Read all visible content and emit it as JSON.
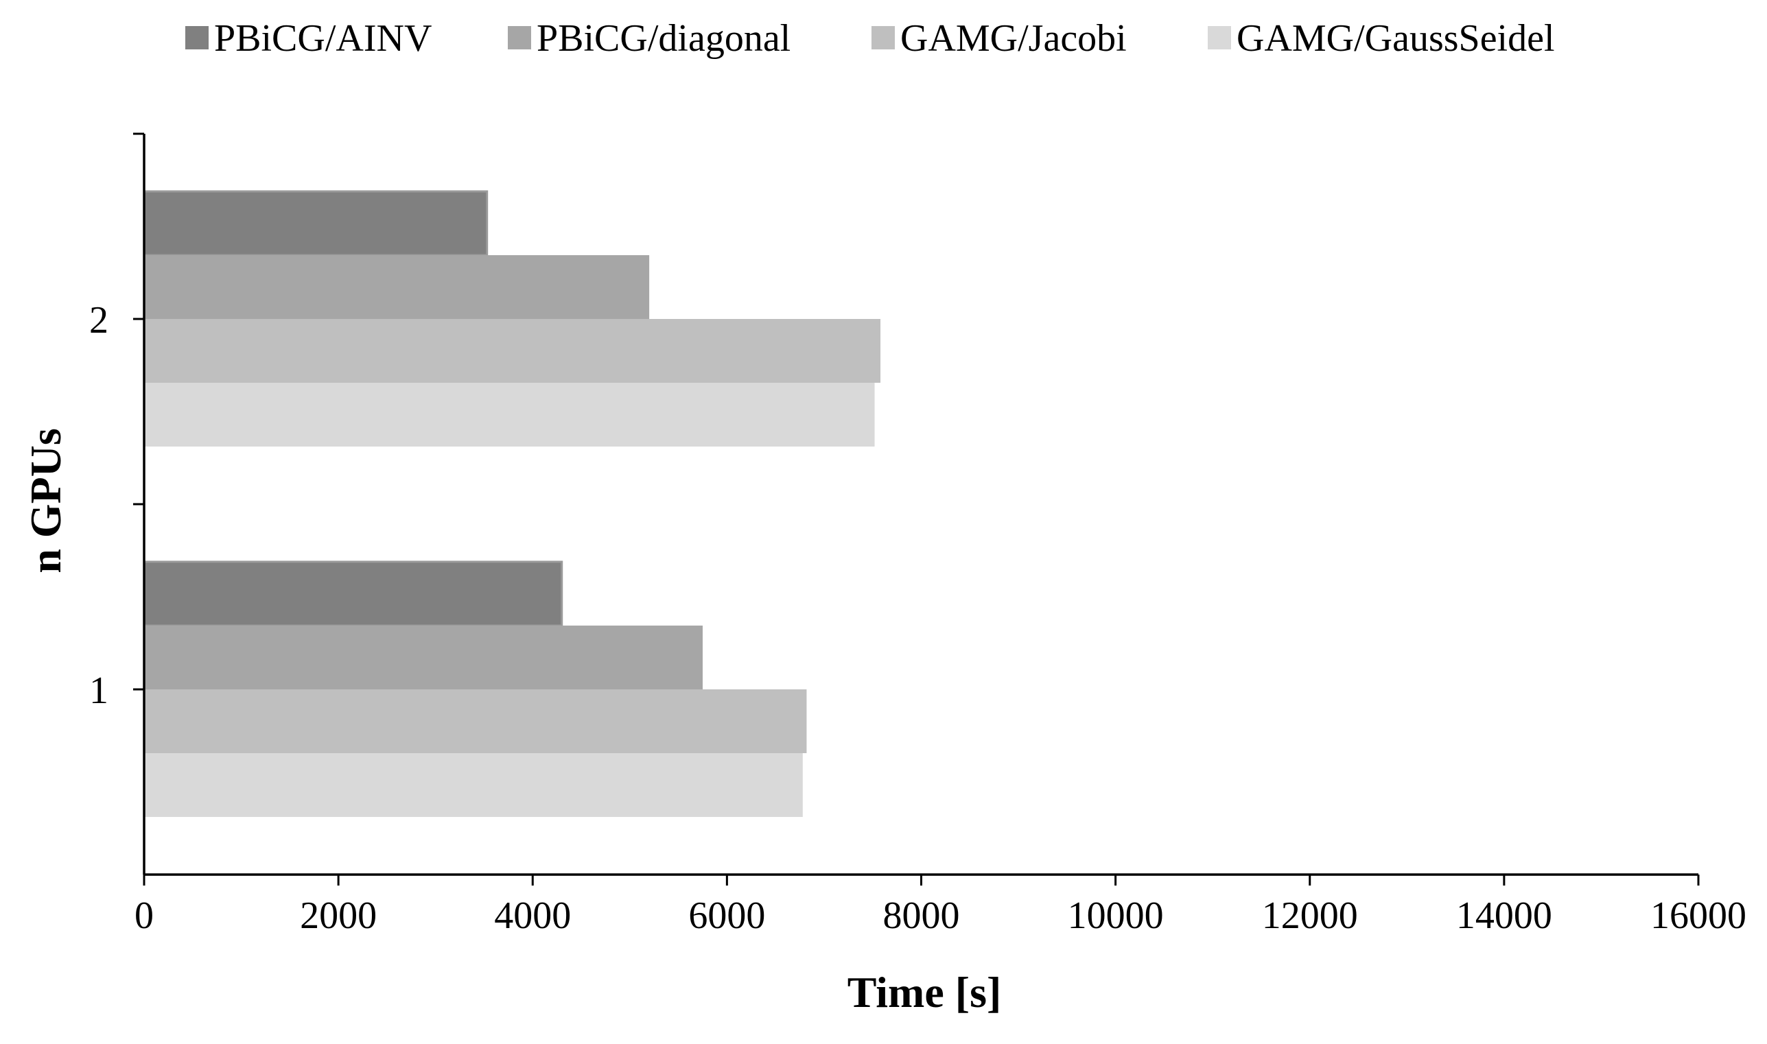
{
  "chart_data": {
    "type": "bar",
    "orientation": "horizontal",
    "title": "",
    "xlabel": "Time [s]",
    "ylabel": "n GPUs",
    "xlim": [
      0,
      16000
    ],
    "xticks": [
      0,
      2000,
      4000,
      6000,
      8000,
      10000,
      12000,
      14000,
      16000
    ],
    "categories": [
      "1",
      "2"
    ],
    "series": [
      {
        "name": "PBiCG/AINV",
        "color": "#808080",
        "values": [
          4300,
          3530
        ]
      },
      {
        "name": "PBiCG/diagonal",
        "color": "#a6a6a6",
        "values": [
          5750,
          5200
        ]
      },
      {
        "name": "GAMG/Jacobi",
        "color": "#bfbfbf",
        "values": [
          6820,
          7580
        ]
      },
      {
        "name": "GAMG/GaussSeidel",
        "color": "#d9d9d9",
        "values": [
          6780,
          7520
        ]
      }
    ],
    "grid": false,
    "legend_position": "top"
  }
}
